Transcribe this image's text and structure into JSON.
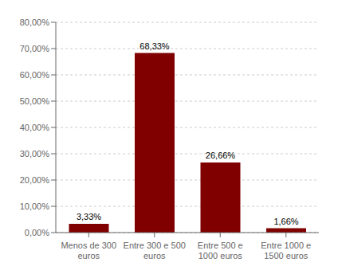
{
  "chart_data": {
    "type": "bar",
    "categories": [
      "Menos de 300\neuros",
      "Entre 300 e 500\neuros",
      "Entre 500 e\n1000 euros",
      "Entre 1000 e\n1500 euros"
    ],
    "values": [
      3.33,
      68.33,
      26.66,
      1.66
    ],
    "value_labels": [
      "3,33%",
      "68,33%",
      "26,66%",
      "1,66%"
    ],
    "data_labels": true,
    "color": "#800000",
    "ylim": [
      0,
      80
    ],
    "yticks": [
      {
        "value": 0,
        "label": "0,00%"
      },
      {
        "value": 10,
        "label": "10,00%"
      },
      {
        "value": 20,
        "label": "20,00%"
      },
      {
        "value": 30,
        "label": "30,00%"
      },
      {
        "value": 40,
        "label": "40,00%"
      },
      {
        "value": 50,
        "label": "50,00%"
      },
      {
        "value": 60,
        "label": "60,00%"
      },
      {
        "value": 70,
        "label": "70,00%"
      },
      {
        "value": 80,
        "label": "80,00%"
      }
    ],
    "grid": true
  }
}
